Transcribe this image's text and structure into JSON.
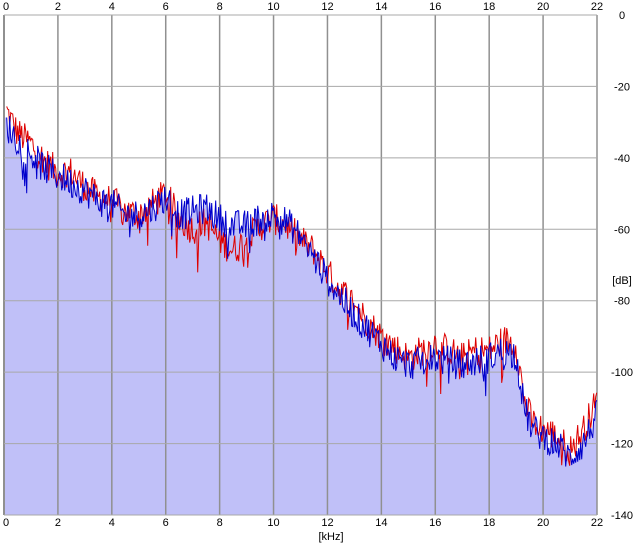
{
  "chart_data": {
    "type": "area",
    "xlabel": "[kHz]",
    "ylabel": "[dB]",
    "xlim": [
      0,
      22
    ],
    "ylim": [
      -140,
      0
    ],
    "x_ticks": [
      0,
      2,
      4,
      6,
      8,
      10,
      12,
      14,
      16,
      18,
      20,
      22
    ],
    "x_tick_labels": [
      "0",
      "2",
      "4",
      "6",
      "8",
      "10",
      "12",
      "14",
      "16",
      "18",
      "20",
      "22"
    ],
    "y_ticks": [
      0,
      -20,
      -40,
      -60,
      -80,
      -100,
      -120,
      -140
    ],
    "y_tick_labels": [
      "0",
      "-20",
      "-40",
      "-60",
      "-80",
      "-100",
      "-120",
      "-140"
    ],
    "grid": true,
    "x_ticks_top": true,
    "series": [
      {
        "color": "#dd0000",
        "x": [
          0.1,
          0.5,
          1,
          1.5,
          2,
          2.5,
          3,
          3.5,
          4,
          4.5,
          5,
          5.5,
          6,
          6.5,
          7,
          7.5,
          8,
          8.5,
          9,
          9.5,
          10,
          10.5,
          11,
          11.5,
          12,
          12.5,
          13,
          13.5,
          14,
          14.5,
          15,
          15.5,
          16,
          16.5,
          17,
          17.5,
          18,
          18.5,
          19,
          19.3,
          19.6,
          20,
          20.5,
          21,
          21.5,
          22
        ],
        "values": [
          -27,
          -33,
          -36,
          -41,
          -44,
          -44,
          -48,
          -51,
          -52,
          -55,
          -56,
          -53,
          -50,
          -57,
          -60,
          -58,
          -63,
          -66,
          -63,
          -59,
          -57,
          -59,
          -63,
          -66,
          -72,
          -77,
          -81,
          -86,
          -90,
          -93,
          -96,
          -94,
          -92,
          -94,
          -96,
          -94,
          -94,
          -91,
          -92,
          -108,
          -114,
          -116,
          -118,
          -122,
          -116,
          -108
        ]
      },
      {
        "color": "#0000cc",
        "x": [
          0.1,
          0.5,
          1,
          1.5,
          2,
          2.5,
          3,
          3.5,
          4,
          4.5,
          5,
          5.5,
          6,
          6.5,
          7,
          7.5,
          8,
          8.5,
          9,
          9.5,
          10,
          10.5,
          11,
          11.5,
          12,
          12.5,
          13,
          13.5,
          14,
          14.5,
          15,
          15.5,
          16,
          16.5,
          17,
          17.5,
          18,
          18.5,
          19,
          19.3,
          19.6,
          20,
          20.5,
          21,
          21.5,
          22
        ],
        "values": [
          -31,
          -35,
          -39,
          -43,
          -45,
          -47,
          -49,
          -52,
          -53,
          -56,
          -56,
          -54,
          -51,
          -56,
          -55,
          -54,
          -57,
          -59,
          -59,
          -57,
          -56,
          -58,
          -62,
          -68,
          -74,
          -79,
          -84,
          -88,
          -92,
          -96,
          -98,
          -97,
          -96,
          -97,
          -98,
          -97,
          -96,
          -94,
          -95,
          -110,
          -116,
          -118,
          -120,
          -124,
          -120,
          -112
        ]
      }
    ]
  }
}
